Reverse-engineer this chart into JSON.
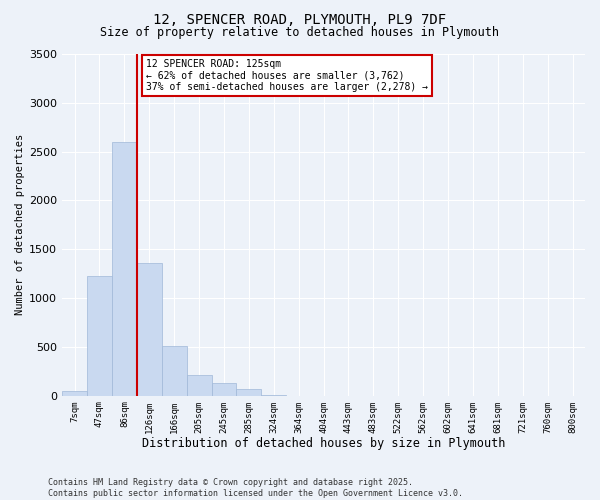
{
  "title_line1": "12, SPENCER ROAD, PLYMOUTH, PL9 7DF",
  "title_line2": "Size of property relative to detached houses in Plymouth",
  "xlabel": "Distribution of detached houses by size in Plymouth",
  "ylabel": "Number of detached properties",
  "footnote_line1": "Contains HM Land Registry data © Crown copyright and database right 2025.",
  "footnote_line2": "Contains public sector information licensed under the Open Government Licence v3.0.",
  "bar_labels": [
    "7sqm",
    "47sqm",
    "86sqm",
    "126sqm",
    "166sqm",
    "205sqm",
    "245sqm",
    "285sqm",
    "324sqm",
    "364sqm",
    "404sqm",
    "443sqm",
    "483sqm",
    "522sqm",
    "562sqm",
    "602sqm",
    "641sqm",
    "681sqm",
    "721sqm",
    "760sqm",
    "800sqm"
  ],
  "bar_values": [
    50,
    1230,
    2600,
    1360,
    510,
    215,
    135,
    65,
    10,
    0,
    0,
    0,
    0,
    0,
    0,
    0,
    0,
    0,
    0,
    0,
    0
  ],
  "bar_color": "#c9d9f0",
  "bar_edge_color": "#a0b8d8",
  "ylim": [
    0,
    3500
  ],
  "yticks": [
    0,
    500,
    1000,
    1500,
    2000,
    2500,
    3000,
    3500
  ],
  "vline_x": 2.5,
  "vline_color": "#cc0000",
  "annotation_line1": "12 SPENCER ROAD: 125sqm",
  "annotation_line2": "← 62% of detached houses are smaller (3,762)",
  "annotation_line3": "37% of semi-detached houses are larger (2,278) →",
  "annotation_box_color": "#cc0000",
  "background_color": "#edf2f9",
  "grid_color": "#ffffff",
  "fig_bg_color": "#edf2f9"
}
